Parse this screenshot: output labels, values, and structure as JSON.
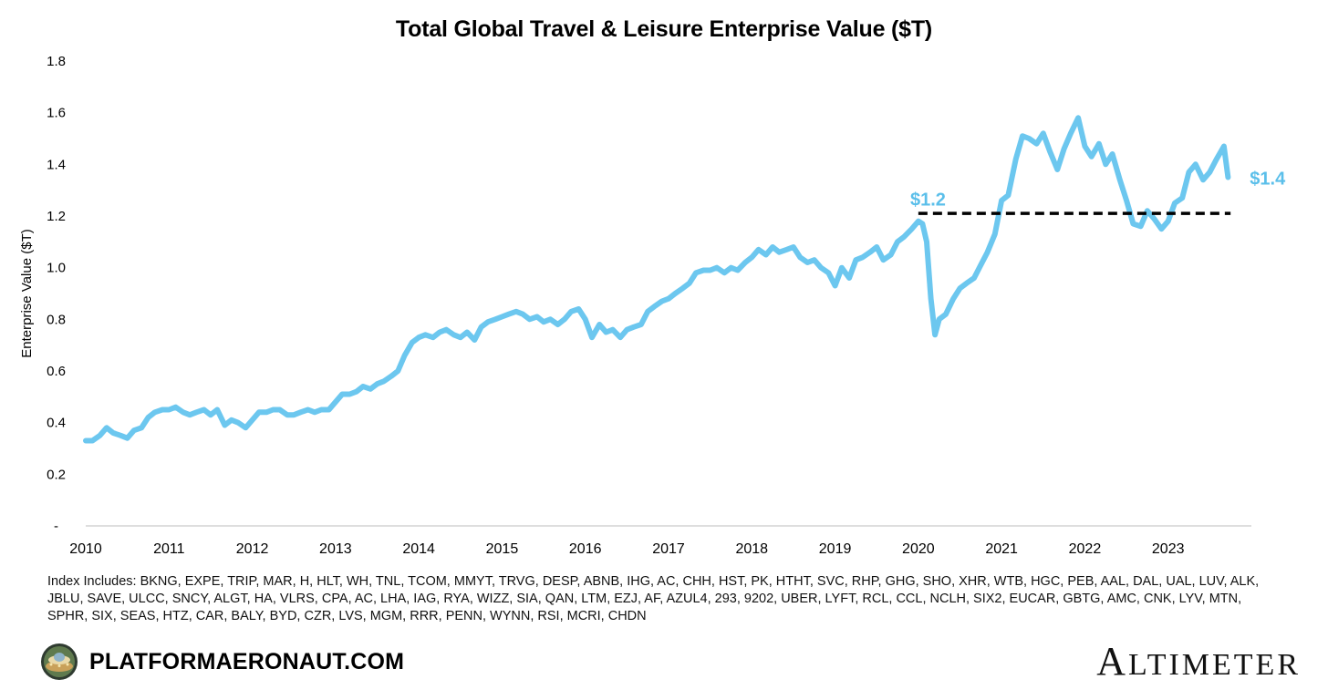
{
  "chart_data": {
    "type": "line",
    "title": "Total Global Travel & Leisure Enterprise Value ($T)",
    "ylabel": "Enterprise Value ($T)",
    "xlabel": "",
    "ylim": [
      0,
      1.8
    ],
    "xlim": [
      2010,
      2024.0
    ],
    "yticks": [
      "-",
      "0.2",
      "0.4",
      "0.6",
      "0.8",
      "1.0",
      "1.2",
      "1.4",
      "1.6",
      "1.8"
    ],
    "xticks": [
      "2010",
      "2011",
      "2012",
      "2013",
      "2014",
      "2015",
      "2016",
      "2017",
      "2018",
      "2019",
      "2020",
      "2021",
      "2022",
      "2023"
    ],
    "grid": false,
    "line_color": "#6cc7ef",
    "reference_line": {
      "y": 1.21,
      "x_start": 2020.0,
      "x_end": 2023.75,
      "color": "#000000",
      "style": "dashed"
    },
    "annotations": [
      {
        "text": "$1.2",
        "x": 2020.1,
        "y": 1.22,
        "color": "#5bbfea"
      },
      {
        "text": "$1.4",
        "x": 2023.85,
        "y": 1.35,
        "color": "#5bbfea"
      }
    ],
    "series": [
      {
        "x": [
          2010.0,
          2010.08,
          2010.17,
          2010.25,
          2010.33,
          2010.42,
          2010.5,
          2010.58,
          2010.67,
          2010.75,
          2010.83,
          2010.92,
          2011.0,
          2011.08,
          2011.17,
          2011.25,
          2011.33,
          2011.42,
          2011.5,
          2011.58,
          2011.67,
          2011.75,
          2011.83,
          2011.92,
          2012.0,
          2012.08,
          2012.17,
          2012.25,
          2012.33,
          2012.42,
          2012.5,
          2012.58,
          2012.67,
          2012.75,
          2012.83,
          2012.92,
          2013.0,
          2013.08,
          2013.17,
          2013.25,
          2013.33,
          2013.42,
          2013.5,
          2013.58,
          2013.67,
          2013.75,
          2013.83,
          2013.92,
          2014.0,
          2014.08,
          2014.17,
          2014.25,
          2014.33,
          2014.42,
          2014.5,
          2014.58,
          2014.67,
          2014.75,
          2014.83,
          2014.92,
          2015.0,
          2015.08,
          2015.17,
          2015.25,
          2015.33,
          2015.42,
          2015.5,
          2015.58,
          2015.67,
          2015.75,
          2015.83,
          2015.92,
          2016.0,
          2016.08,
          2016.17,
          2016.25,
          2016.33,
          2016.42,
          2016.5,
          2016.58,
          2016.67,
          2016.75,
          2016.83,
          2016.92,
          2017.0,
          2017.08,
          2017.17,
          2017.25,
          2017.33,
          2017.42,
          2017.5,
          2017.58,
          2017.67,
          2017.75,
          2017.83,
          2017.92,
          2018.0,
          2018.08,
          2018.17,
          2018.25,
          2018.33,
          2018.42,
          2018.5,
          2018.58,
          2018.67,
          2018.75,
          2018.83,
          2018.92,
          2019.0,
          2019.08,
          2019.17,
          2019.25,
          2019.33,
          2019.42,
          2019.5,
          2019.58,
          2019.67,
          2019.75,
          2019.83,
          2019.92,
          2020.0,
          2020.05,
          2020.1,
          2020.15,
          2020.2,
          2020.25,
          2020.33,
          2020.42,
          2020.5,
          2020.58,
          2020.67,
          2020.75,
          2020.83,
          2020.92,
          2021.0,
          2021.08,
          2021.17,
          2021.25,
          2021.33,
          2021.42,
          2021.5,
          2021.58,
          2021.67,
          2021.75,
          2021.83,
          2021.92,
          2022.0,
          2022.08,
          2022.17,
          2022.25,
          2022.33,
          2022.42,
          2022.5,
          2022.58,
          2022.67,
          2022.75,
          2022.83,
          2022.92,
          2023.0,
          2023.08,
          2023.17,
          2023.25,
          2023.33,
          2023.42,
          2023.5,
          2023.58,
          2023.67,
          2023.72
        ],
        "y": [
          0.33,
          0.33,
          0.35,
          0.38,
          0.36,
          0.35,
          0.34,
          0.37,
          0.38,
          0.42,
          0.44,
          0.45,
          0.45,
          0.46,
          0.44,
          0.43,
          0.44,
          0.45,
          0.43,
          0.45,
          0.39,
          0.41,
          0.4,
          0.38,
          0.41,
          0.44,
          0.44,
          0.45,
          0.45,
          0.43,
          0.43,
          0.44,
          0.45,
          0.44,
          0.45,
          0.45,
          0.48,
          0.51,
          0.51,
          0.52,
          0.54,
          0.53,
          0.55,
          0.56,
          0.58,
          0.6,
          0.66,
          0.71,
          0.73,
          0.74,
          0.73,
          0.75,
          0.76,
          0.74,
          0.73,
          0.75,
          0.72,
          0.77,
          0.79,
          0.8,
          0.81,
          0.82,
          0.83,
          0.82,
          0.8,
          0.81,
          0.79,
          0.8,
          0.78,
          0.8,
          0.83,
          0.84,
          0.8,
          0.73,
          0.78,
          0.75,
          0.76,
          0.73,
          0.76,
          0.77,
          0.78,
          0.83,
          0.85,
          0.87,
          0.88,
          0.9,
          0.92,
          0.94,
          0.98,
          0.99,
          0.99,
          1.0,
          0.98,
          1.0,
          0.99,
          1.02,
          1.04,
          1.07,
          1.05,
          1.08,
          1.06,
          1.07,
          1.08,
          1.04,
          1.02,
          1.03,
          1.0,
          0.98,
          0.93,
          1.0,
          0.96,
          1.03,
          1.04,
          1.06,
          1.08,
          1.03,
          1.05,
          1.1,
          1.12,
          1.15,
          1.18,
          1.17,
          1.1,
          0.88,
          0.74,
          0.8,
          0.82,
          0.88,
          0.92,
          0.94,
          0.96,
          1.01,
          1.06,
          1.13,
          1.26,
          1.28,
          1.42,
          1.51,
          1.5,
          1.48,
          1.52,
          1.45,
          1.38,
          1.46,
          1.52,
          1.58,
          1.47,
          1.43,
          1.48,
          1.4,
          1.44,
          1.34,
          1.26,
          1.17,
          1.16,
          1.22,
          1.19,
          1.15,
          1.18,
          1.25,
          1.27,
          1.37,
          1.4,
          1.34,
          1.37,
          1.42,
          1.47,
          1.35
        ]
      }
    ]
  },
  "footnote": "Index Includes: BKNG, EXPE, TRIP, MAR, H, HLT, WH, TNL,  TCOM, MMYT, TRVG, DESP, ABNB, IHG, AC, CHH, HST, PK, HTHT, SVC, RHP, GHG, SHO, XHR, WTB, HGC, PEB, AAL, DAL, UAL, LUV, ALK, JBLU, SAVE, ULCC, SNCY, ALGT, HA, VLRS, CPA, AC, LHA, IAG, RYA, WIZZ, SIA, QAN, LTM, EZJ, AF,  AZUL4, 293, 9202, UBER, LYFT, RCL, CCL, NCLH, SIX2, EUCAR, GBTG, AMC, CNK, LYV, MTN, SPHR, SIX, SEAS, HTZ, CAR, BALY, BYD, CZR, LVS, MGM, RRR, PENN, WYNN, RSI, MCRI, CHDN",
  "brand": {
    "name": "PLATFORMAERONAUT.COM",
    "logo_icon": "spaceship-logo-icon"
  },
  "partner": {
    "name_first": "A",
    "name_rest": "LTIMETER"
  }
}
